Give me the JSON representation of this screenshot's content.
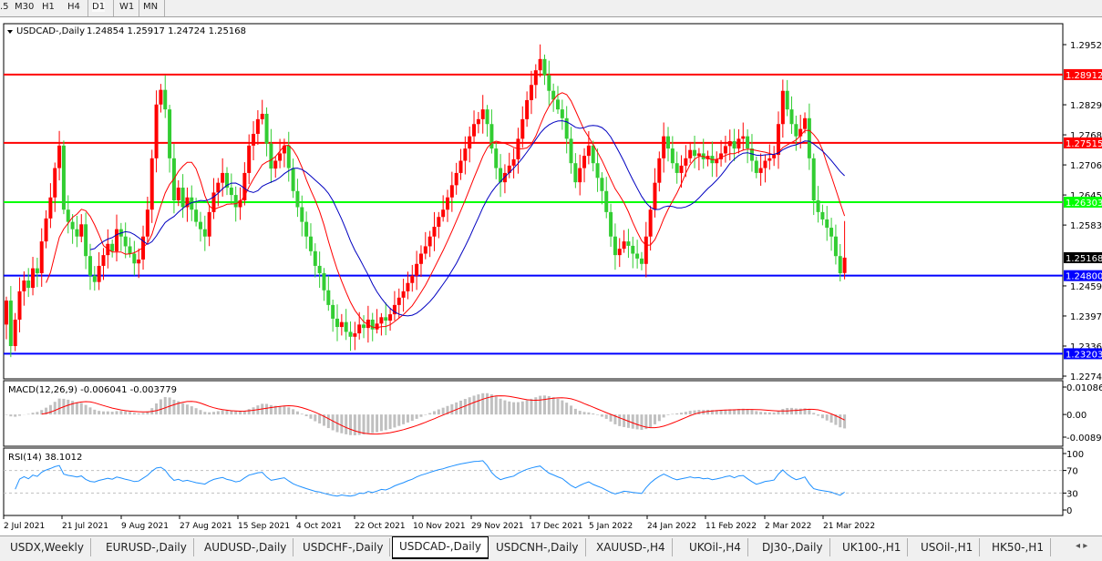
{
  "toolbar": {
    "timeframes": [
      ".5",
      "M30",
      "H1",
      "H4",
      "D1",
      "W1",
      "MN"
    ],
    "active": "D1"
  },
  "header": {
    "symbol_label": "USDCAD-,Daily",
    "ohlc": "1.24854 1.25917 1.24724 1.25168"
  },
  "colors": {
    "bull": "#ff0000",
    "bear": "#32cd32",
    "ma_fast": "#ff0000",
    "ma_slow": "#0000c0",
    "red_level": "#ff0000",
    "green_level": "#00ff00",
    "blue_level": "#0000ff"
  },
  "chart_data": {
    "type": "candlestick",
    "symbol": "USDCAD-",
    "timeframe": "Daily",
    "last_bar": {
      "open": 1.24854,
      "high": 1.25917,
      "low": 1.24724,
      "close": 1.25168
    },
    "ylim": [
      1.2262,
      1.3004
    ],
    "price_ticks": [
      "1.29525",
      "1.28295",
      "1.27680",
      "1.27065",
      "1.26450",
      "1.25835",
      "1.24590",
      "1.23975",
      "1.23360",
      "1.22745"
    ],
    "levels": [
      {
        "value": 1.28912,
        "label": "1.28912",
        "color": "#ff0000"
      },
      {
        "value": 1.27515,
        "label": "1.27515",
        "color": "#ff0000"
      },
      {
        "value": 1.26303,
        "label": "1.26303",
        "color": "#00ff00"
      },
      {
        "value": 1.248,
        "label": "1.24800",
        "color": "#0000ff"
      },
      {
        "value": 1.23203,
        "label": "1.23203",
        "color": "#0000ff"
      }
    ],
    "current_price": "1.25168",
    "date_ticks": [
      "2 Jul 2021",
      "21 Jul 2021",
      "9 Aug 2021",
      "27 Aug 2021",
      "15 Sep 2021",
      "4 Oct 2021",
      "22 Oct 2021",
      "10 Nov 2021",
      "29 Nov 2021",
      "17 Dec 2021",
      "5 Jan 2022",
      "24 Jan 2022",
      "11 Feb 2022",
      "2 Mar 2022",
      "21 Mar 2022"
    ],
    "closes": [
      1.2429,
      1.2336,
      1.239,
      1.2448,
      1.247,
      1.2455,
      1.2495,
      1.2485,
      1.255,
      1.2597,
      1.264,
      1.27,
      1.2746,
      1.2615,
      1.259,
      1.2575,
      1.256,
      1.2585,
      1.252,
      1.248,
      1.2467,
      1.25,
      1.2522,
      1.2545,
      1.253,
      1.2575,
      1.256,
      1.254,
      1.2525,
      1.2505,
      1.2513,
      1.256,
      1.2615,
      1.272,
      1.283,
      1.286,
      1.282,
      1.272,
      1.2634,
      1.266,
      1.262,
      1.264,
      1.2615,
      1.259,
      1.2575,
      1.256,
      1.261,
      1.265,
      1.267,
      1.269,
      1.266,
      1.2645,
      1.262,
      1.2634,
      1.269,
      1.2746,
      1.277,
      1.28,
      1.2811,
      1.275,
      1.2699,
      1.2715,
      1.273,
      1.2746,
      1.27,
      1.2653,
      1.262,
      1.259,
      1.256,
      1.253,
      1.25,
      1.2485,
      1.245,
      1.242,
      1.2392,
      1.2375,
      1.2385,
      1.2365,
      1.2355,
      1.2362,
      1.238,
      1.2373,
      1.239,
      1.237,
      1.2382,
      1.2395,
      1.2388,
      1.2401,
      1.242,
      1.2435,
      1.2448,
      1.2465,
      1.248,
      1.2504,
      1.2525,
      1.254,
      1.256,
      1.258,
      1.26,
      1.2615,
      1.264,
      1.2665,
      1.269,
      1.2715,
      1.274,
      1.2765,
      1.279,
      1.28,
      1.282,
      1.279,
      1.274,
      1.27,
      1.2671,
      1.269,
      1.2705,
      1.2718,
      1.276,
      1.28,
      1.2839,
      1.287,
      1.29,
      1.2923,
      1.289,
      1.2858,
      1.284,
      1.282,
      1.2802,
      1.276,
      1.271,
      1.2671,
      1.27,
      1.2725,
      1.2746,
      1.271,
      1.268,
      1.2653,
      1.261,
      1.256,
      1.2522,
      1.2535,
      1.255,
      1.2541,
      1.2525,
      1.2515,
      1.2504,
      1.256,
      1.2615,
      1.267,
      1.272,
      1.2765,
      1.274,
      1.271,
      1.269,
      1.2705,
      1.272,
      1.2737,
      1.2725,
      1.273,
      1.2718,
      1.2725,
      1.271,
      1.2718,
      1.273,
      1.2745,
      1.2755,
      1.274,
      1.276,
      1.2765,
      1.274,
      1.2715,
      1.269,
      1.27,
      1.2715,
      1.272,
      1.2727,
      1.279,
      1.2858,
      1.282,
      1.279,
      1.2765,
      1.278,
      1.2802,
      1.272,
      1.2634,
      1.261,
      1.2595,
      1.2578,
      1.256,
      1.252,
      1.2485,
      1.25168
    ],
    "moving_averages": [
      {
        "color": "#ff0000"
      },
      {
        "color": "#0000c0"
      }
    ],
    "macd": {
      "label": "MACD(12,26,9) -0.006041 -0.003779",
      "ticks": [
        "0.010869",
        "0.00",
        "-0.008974"
      ],
      "ylim": [
        -0.008974,
        0.010869
      ]
    },
    "rsi": {
      "label": "RSI(14) 38.1012",
      "ticks": [
        "100",
        "70",
        "30",
        "0"
      ],
      "levels": [
        70,
        30
      ]
    }
  },
  "tabs": [
    "USDX,Weekly",
    "EURUSD-,Daily",
    "AUDUSD-,Daily",
    "USDCHF-,Daily",
    "USDCAD-,Daily",
    "USDCNH-,Daily",
    "XAUUSD-,H4",
    "UKOil-,H4",
    "DJ30-,Daily",
    "UK100-,H1",
    "USOil-,H1",
    "HK50-,H1"
  ],
  "active_tab": "USDCAD-,Daily"
}
